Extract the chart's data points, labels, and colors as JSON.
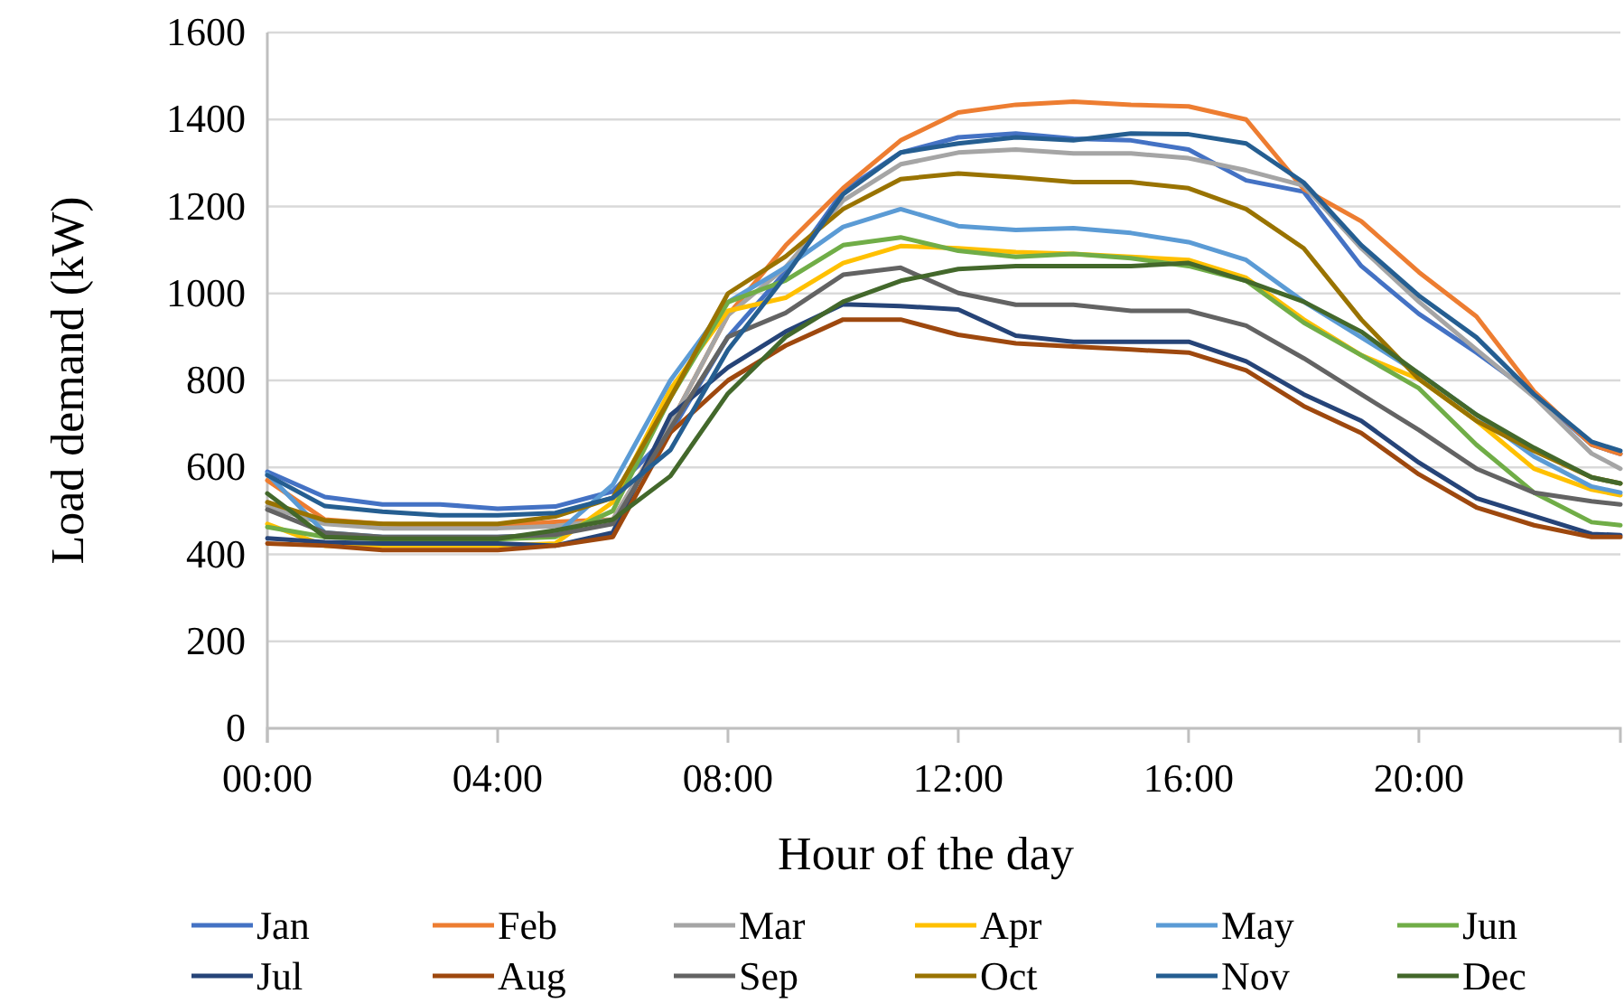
{
  "chart_data": {
    "type": "line",
    "xlabel": "Hour of the day",
    "ylabel": "Load demand (kW)",
    "x": [
      0,
      1,
      2,
      3,
      4,
      5,
      6,
      7,
      8,
      9,
      10,
      11,
      12,
      13,
      14,
      15,
      16,
      17,
      18,
      19,
      20,
      21,
      22,
      23,
      23.5
    ],
    "xlim": [
      0,
      23.5
    ],
    "xticks": [
      {
        "value": 0,
        "label": "00:00"
      },
      {
        "value": 4,
        "label": "04:00"
      },
      {
        "value": 8,
        "label": "08:00"
      },
      {
        "value": 12,
        "label": "12:00"
      },
      {
        "value": 16,
        "label": "16:00"
      },
      {
        "value": 20,
        "label": "20:00"
      }
    ],
    "ylim": [
      0,
      1600
    ],
    "yticks": [
      0,
      200,
      400,
      600,
      800,
      1000,
      1200,
      1400,
      1600
    ],
    "grid": "y",
    "legend": "bottom",
    "marker": "none",
    "line_style": "solid",
    "series": [
      {
        "name": "Jan",
        "color": "#4472c4",
        "values": [
          590,
          532,
          515,
          515,
          505,
          510,
          545,
          680,
          900,
          1050,
          1235,
          1324,
          1359,
          1368,
          1356,
          1352,
          1331,
          1260,
          1234,
          1063,
          953,
          864,
          768,
          652,
          631
        ]
      },
      {
        "name": "Feb",
        "color": "#ed7d31",
        "values": [
          570,
          480,
          470,
          465,
          465,
          475,
          480,
          700,
          950,
          1110,
          1242,
          1352,
          1416,
          1434,
          1441,
          1434,
          1430,
          1400,
          1240,
          1166,
          1049,
          947,
          775,
          652,
          631
        ]
      },
      {
        "name": "Mar",
        "color": "#a5a5a5",
        "values": [
          510,
          470,
          460,
          460,
          460,
          465,
          480,
          700,
          950,
          1060,
          1214,
          1297,
          1324,
          1331,
          1322,
          1322,
          1311,
          1283,
          1248,
          1104,
          981,
          871,
          762,
          632,
          597
        ]
      },
      {
        "name": "Apr",
        "color": "#ffc000",
        "values": [
          470,
          420,
          420,
          420,
          420,
          425,
          520,
          780,
          960,
          990,
          1070,
          1109,
          1104,
          1095,
          1091,
          1084,
          1077,
          1036,
          940,
          858,
          803,
          707,
          597,
          549,
          536
        ]
      },
      {
        "name": "May",
        "color": "#5b9bd5",
        "values": [
          585,
          450,
          440,
          440,
          440,
          445,
          560,
          800,
          980,
          1060,
          1153,
          1194,
          1155,
          1146,
          1150,
          1139,
          1118,
          1077,
          981,
          899,
          816,
          721,
          625,
          556,
          542
        ]
      },
      {
        "name": "Jun",
        "color": "#70ad47",
        "values": [
          463,
          440,
          435,
          435,
          435,
          440,
          500,
          760,
          980,
          1030,
          1111,
          1129,
          1098,
          1084,
          1091,
          1081,
          1063,
          1029,
          933,
          858,
          782,
          652,
          542,
          474,
          467
        ]
      },
      {
        "name": "Jul",
        "color": "#264478",
        "values": [
          437,
          428,
          425,
          425,
          425,
          420,
          450,
          720,
          830,
          912,
          975,
          971,
          963,
          903,
          889,
          889,
          889,
          844,
          768,
          707,
          611,
          529,
          488,
          447,
          444
        ]
      },
      {
        "name": "Aug",
        "color": "#9e480e",
        "values": [
          425,
          420,
          410,
          410,
          410,
          420,
          440,
          680,
          800,
          880,
          940,
          940,
          905,
          885,
          878,
          871,
          864,
          823,
          741,
          679,
          584,
          508,
          467,
          440,
          440
        ]
      },
      {
        "name": "Sep",
        "color": "#636363",
        "values": [
          503,
          450,
          440,
          440,
          440,
          445,
          470,
          690,
          900,
          955,
          1043,
          1059,
          1001,
          974,
          974,
          960,
          960,
          926,
          851,
          768,
          686,
          597,
          542,
          522,
          515
        ]
      },
      {
        "name": "Oct",
        "color": "#997300",
        "values": [
          520,
          478,
          470,
          470,
          470,
          487,
          530,
          760,
          1000,
          1085,
          1194,
          1263,
          1276,
          1267,
          1256,
          1256,
          1242,
          1194,
          1104,
          940,
          803,
          707,
          638,
          577,
          563
        ]
      },
      {
        "name": "Nov",
        "color": "#255e91",
        "values": [
          582,
          511,
          498,
          490,
          490,
          495,
          530,
          640,
          870,
          1040,
          1228,
          1324,
          1345,
          1359,
          1352,
          1368,
          1366,
          1345,
          1255,
          1111,
          995,
          899,
          768,
          659,
          638
        ]
      },
      {
        "name": "Dec",
        "color": "#43682b",
        "values": [
          540,
          440,
          436,
          436,
          436,
          455,
          480,
          580,
          770,
          900,
          981,
          1029,
          1056,
          1063,
          1063,
          1063,
          1070,
          1029,
          981,
          912,
          816,
          721,
          645,
          577,
          563
        ]
      }
    ]
  }
}
